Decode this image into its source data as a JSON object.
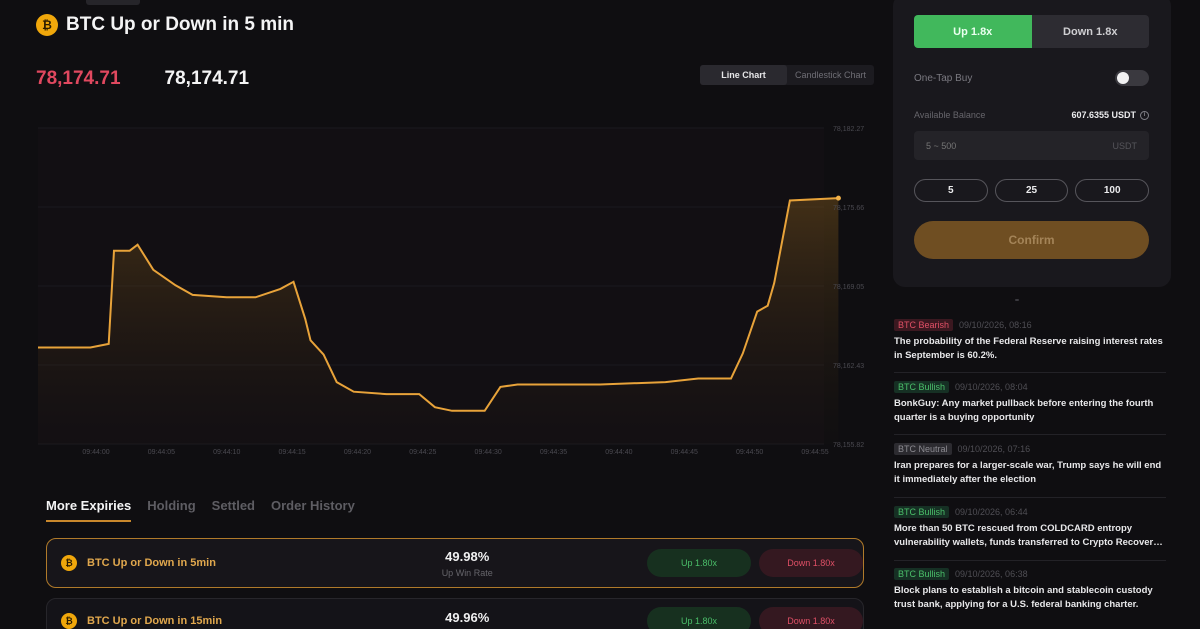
{
  "header": {
    "title": "BTC Up or Down in 5 min",
    "coin_glyph": "₿"
  },
  "prices": {
    "primary": "78,174.71",
    "secondary": "78,174.71"
  },
  "chart_toggle": {
    "line_label": "Line Chart",
    "candle_label": "Candlestick Chart",
    "active": "line"
  },
  "chart_data": {
    "type": "area",
    "color": "#e8a33a",
    "x_labels": [
      "09:44:00",
      "09:44:05",
      "09:44:10",
      "09:44:15",
      "09:44:20",
      "09:44:25",
      "09:44:30",
      "09:44:35",
      "09:44:40",
      "09:44:45",
      "09:44:50",
      "09:44:55"
    ],
    "y_labels": [
      "78,182.27",
      "78,175.66",
      "78,169.05",
      "78,162.43",
      "78,155.82"
    ],
    "ylim": [
      78155.82,
      78182.27
    ],
    "xlim": [
      0,
      60
    ],
    "points": [
      [
        0,
        78163.9
      ],
      [
        4,
        78163.9
      ],
      [
        5.4,
        78164.2
      ],
      [
        5.8,
        78172.0
      ],
      [
        7.0,
        78172.0
      ],
      [
        7.6,
        78172.5
      ],
      [
        8.8,
        78170.4
      ],
      [
        10.5,
        78169.1
      ],
      [
        11.8,
        78168.3
      ],
      [
        14.4,
        78168.1
      ],
      [
        16.6,
        78168.1
      ],
      [
        18.5,
        78168.8
      ],
      [
        19.5,
        78169.4
      ],
      [
        20.4,
        78166.3
      ],
      [
        20.8,
        78164.5
      ],
      [
        21.8,
        78163.3
      ],
      [
        22.8,
        78161.0
      ],
      [
        24.1,
        78160.2
      ],
      [
        26.6,
        78160.0
      ],
      [
        29.1,
        78160.0
      ],
      [
        30.3,
        78158.9
      ],
      [
        31.6,
        78158.6
      ],
      [
        34.1,
        78158.6
      ],
      [
        35.3,
        78160.6
      ],
      [
        36.6,
        78160.8
      ],
      [
        42.9,
        78160.8
      ],
      [
        47.9,
        78161.0
      ],
      [
        50.4,
        78161.3
      ],
      [
        52.9,
        78161.3
      ],
      [
        53.8,
        78163.4
      ],
      [
        54.9,
        78166.9
      ],
      [
        55.7,
        78167.4
      ],
      [
        56.2,
        78169.3
      ],
      [
        57.4,
        78176.2
      ],
      [
        61.1,
        78176.4
      ]
    ]
  },
  "tabs": [
    {
      "label": "More Expiries",
      "active": true
    },
    {
      "label": "Holding",
      "active": false
    },
    {
      "label": "Settled",
      "active": false
    },
    {
      "label": "Order History",
      "active": false
    }
  ],
  "expiries": [
    {
      "title": "BTC Up or Down in 5min",
      "win_rate": "49.98%",
      "win_rate_label": "Up Win Rate",
      "up_label": "Up 1.80x",
      "down_label": "Down 1.80x"
    },
    {
      "title": "BTC Up or Down in 15min",
      "win_rate": "49.96%",
      "win_rate_label": "",
      "up_label": "Up 1.80x",
      "down_label": "Down 1.80x"
    }
  ],
  "trade": {
    "up_label": "Up 1.8x",
    "down_label": "Down 1.8x",
    "one_tap_label": "One-Tap Buy",
    "one_tap_on": false,
    "balance_label": "Available Balance",
    "balance_value": "607.6355 USDT",
    "amount_placeholder": "5 ~ 500",
    "amount_unit": "USDT",
    "quick_amounts": [
      "5",
      "25",
      "100"
    ],
    "confirm_label": "Confirm"
  },
  "news": [
    {
      "tag": "BTC Bearish",
      "sentiment": "bear",
      "time": "09/10/2026, 08:16",
      "text": "The probability of the Federal Reserve raising interest rates in September is 60.2%."
    },
    {
      "tag": "BTC Bullish",
      "sentiment": "bull",
      "time": "09/10/2026, 08:04",
      "text": "BonkGuy: Any market pullback before entering the fourth quarter is a buying opportunity"
    },
    {
      "tag": "BTC Neutral",
      "sentiment": "neut",
      "time": "09/10/2026, 07:16",
      "text": "Iran prepares for a larger-scale war, Trump says he will end it immediately after the election"
    },
    {
      "tag": "BTC Bullish",
      "sentiment": "bull",
      "time": "09/10/2026, 06:44",
      "text": "More than 50 BTC rescued from COLDCARD entropy vulnerability wallets, funds transferred to Crypto Recover…"
    },
    {
      "tag": "BTC Bullish",
      "sentiment": "bull",
      "time": "09/10/2026, 06:38",
      "text": "Block plans to establish a bitcoin and stablecoin custody trust bank, applying for a U.S. federal banking charter."
    }
  ]
}
